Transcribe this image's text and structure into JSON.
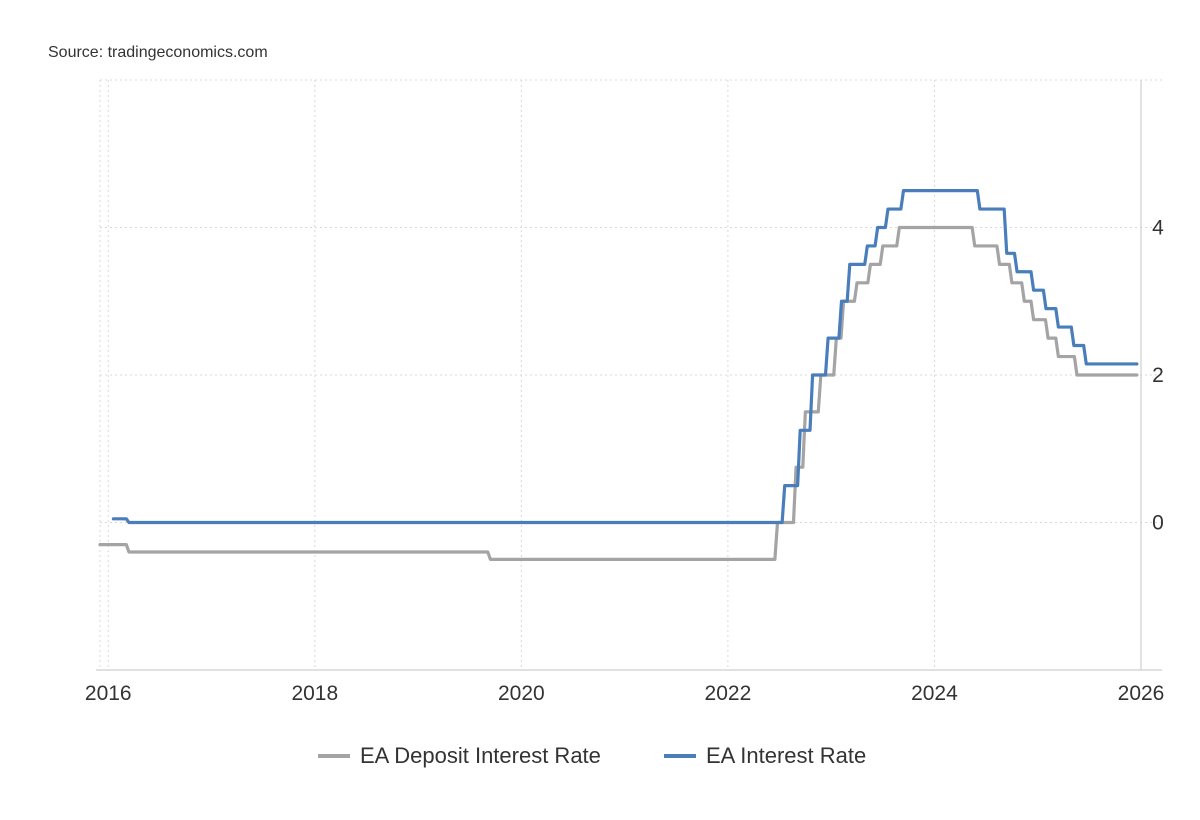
{
  "source": "Source: tradingeconomics.com",
  "colors": {
    "deposit": "#a4a4a4",
    "main": "#4a7ebb",
    "grid": "#d9d9d9",
    "axis": "#cfcfcf"
  },
  "chart_data": {
    "type": "line",
    "title": "",
    "xlabel": "",
    "ylabel": "",
    "xlim": [
      2015.92,
      2026.0
    ],
    "ylim": [
      -2,
      6
    ],
    "y_axis_side": "right",
    "grid": true,
    "x_ticks": [
      2016,
      2018,
      2020,
      2022,
      2024,
      2026
    ],
    "x_tick_labels": [
      "2016",
      "2018",
      "2020",
      "2022",
      "2024",
      "2026"
    ],
    "y_ticks": [
      0,
      2,
      4
    ],
    "y_tick_labels": [
      "0",
      "2",
      "4"
    ],
    "legend_position": "bottom-center",
    "series": [
      {
        "name": "EA Deposit Interest Rate",
        "color": "#a4a4a4",
        "step": true,
        "points": [
          [
            2015.92,
            -0.3
          ],
          [
            2016.2,
            -0.4
          ],
          [
            2019.7,
            -0.5
          ],
          [
            2022.48,
            0.0
          ],
          [
            2022.66,
            0.75
          ],
          [
            2022.75,
            1.5
          ],
          [
            2022.9,
            2.0
          ],
          [
            2023.05,
            2.5
          ],
          [
            2023.12,
            3.0
          ],
          [
            2023.25,
            3.25
          ],
          [
            2023.38,
            3.5
          ],
          [
            2023.5,
            3.75
          ],
          [
            2023.66,
            4.0
          ],
          [
            2024.39,
            3.75
          ],
          [
            2024.63,
            3.5
          ],
          [
            2024.75,
            3.25
          ],
          [
            2024.87,
            3.0
          ],
          [
            2024.96,
            2.75
          ],
          [
            2025.1,
            2.5
          ],
          [
            2025.2,
            2.25
          ],
          [
            2025.38,
            2.0
          ],
          [
            2025.96,
            2.0
          ]
        ]
      },
      {
        "name": "EA Interest Rate",
        "color": "#4a7ebb",
        "step": true,
        "points": [
          [
            2016.05,
            0.05
          ],
          [
            2016.2,
            0.0
          ],
          [
            2022.48,
            0.0
          ],
          [
            2022.55,
            0.5
          ],
          [
            2022.7,
            1.25
          ],
          [
            2022.82,
            2.0
          ],
          [
            2022.97,
            2.5
          ],
          [
            2023.1,
            3.0
          ],
          [
            2023.18,
            3.5
          ],
          [
            2023.35,
            3.75
          ],
          [
            2023.45,
            4.0
          ],
          [
            2023.55,
            4.25
          ],
          [
            2023.7,
            4.5
          ],
          [
            2024.44,
            4.25
          ],
          [
            2024.7,
            3.65
          ],
          [
            2024.8,
            3.4
          ],
          [
            2024.96,
            3.15
          ],
          [
            2025.08,
            2.9
          ],
          [
            2025.2,
            2.65
          ],
          [
            2025.35,
            2.4
          ],
          [
            2025.47,
            2.15
          ],
          [
            2025.96,
            2.15
          ]
        ]
      }
    ]
  }
}
